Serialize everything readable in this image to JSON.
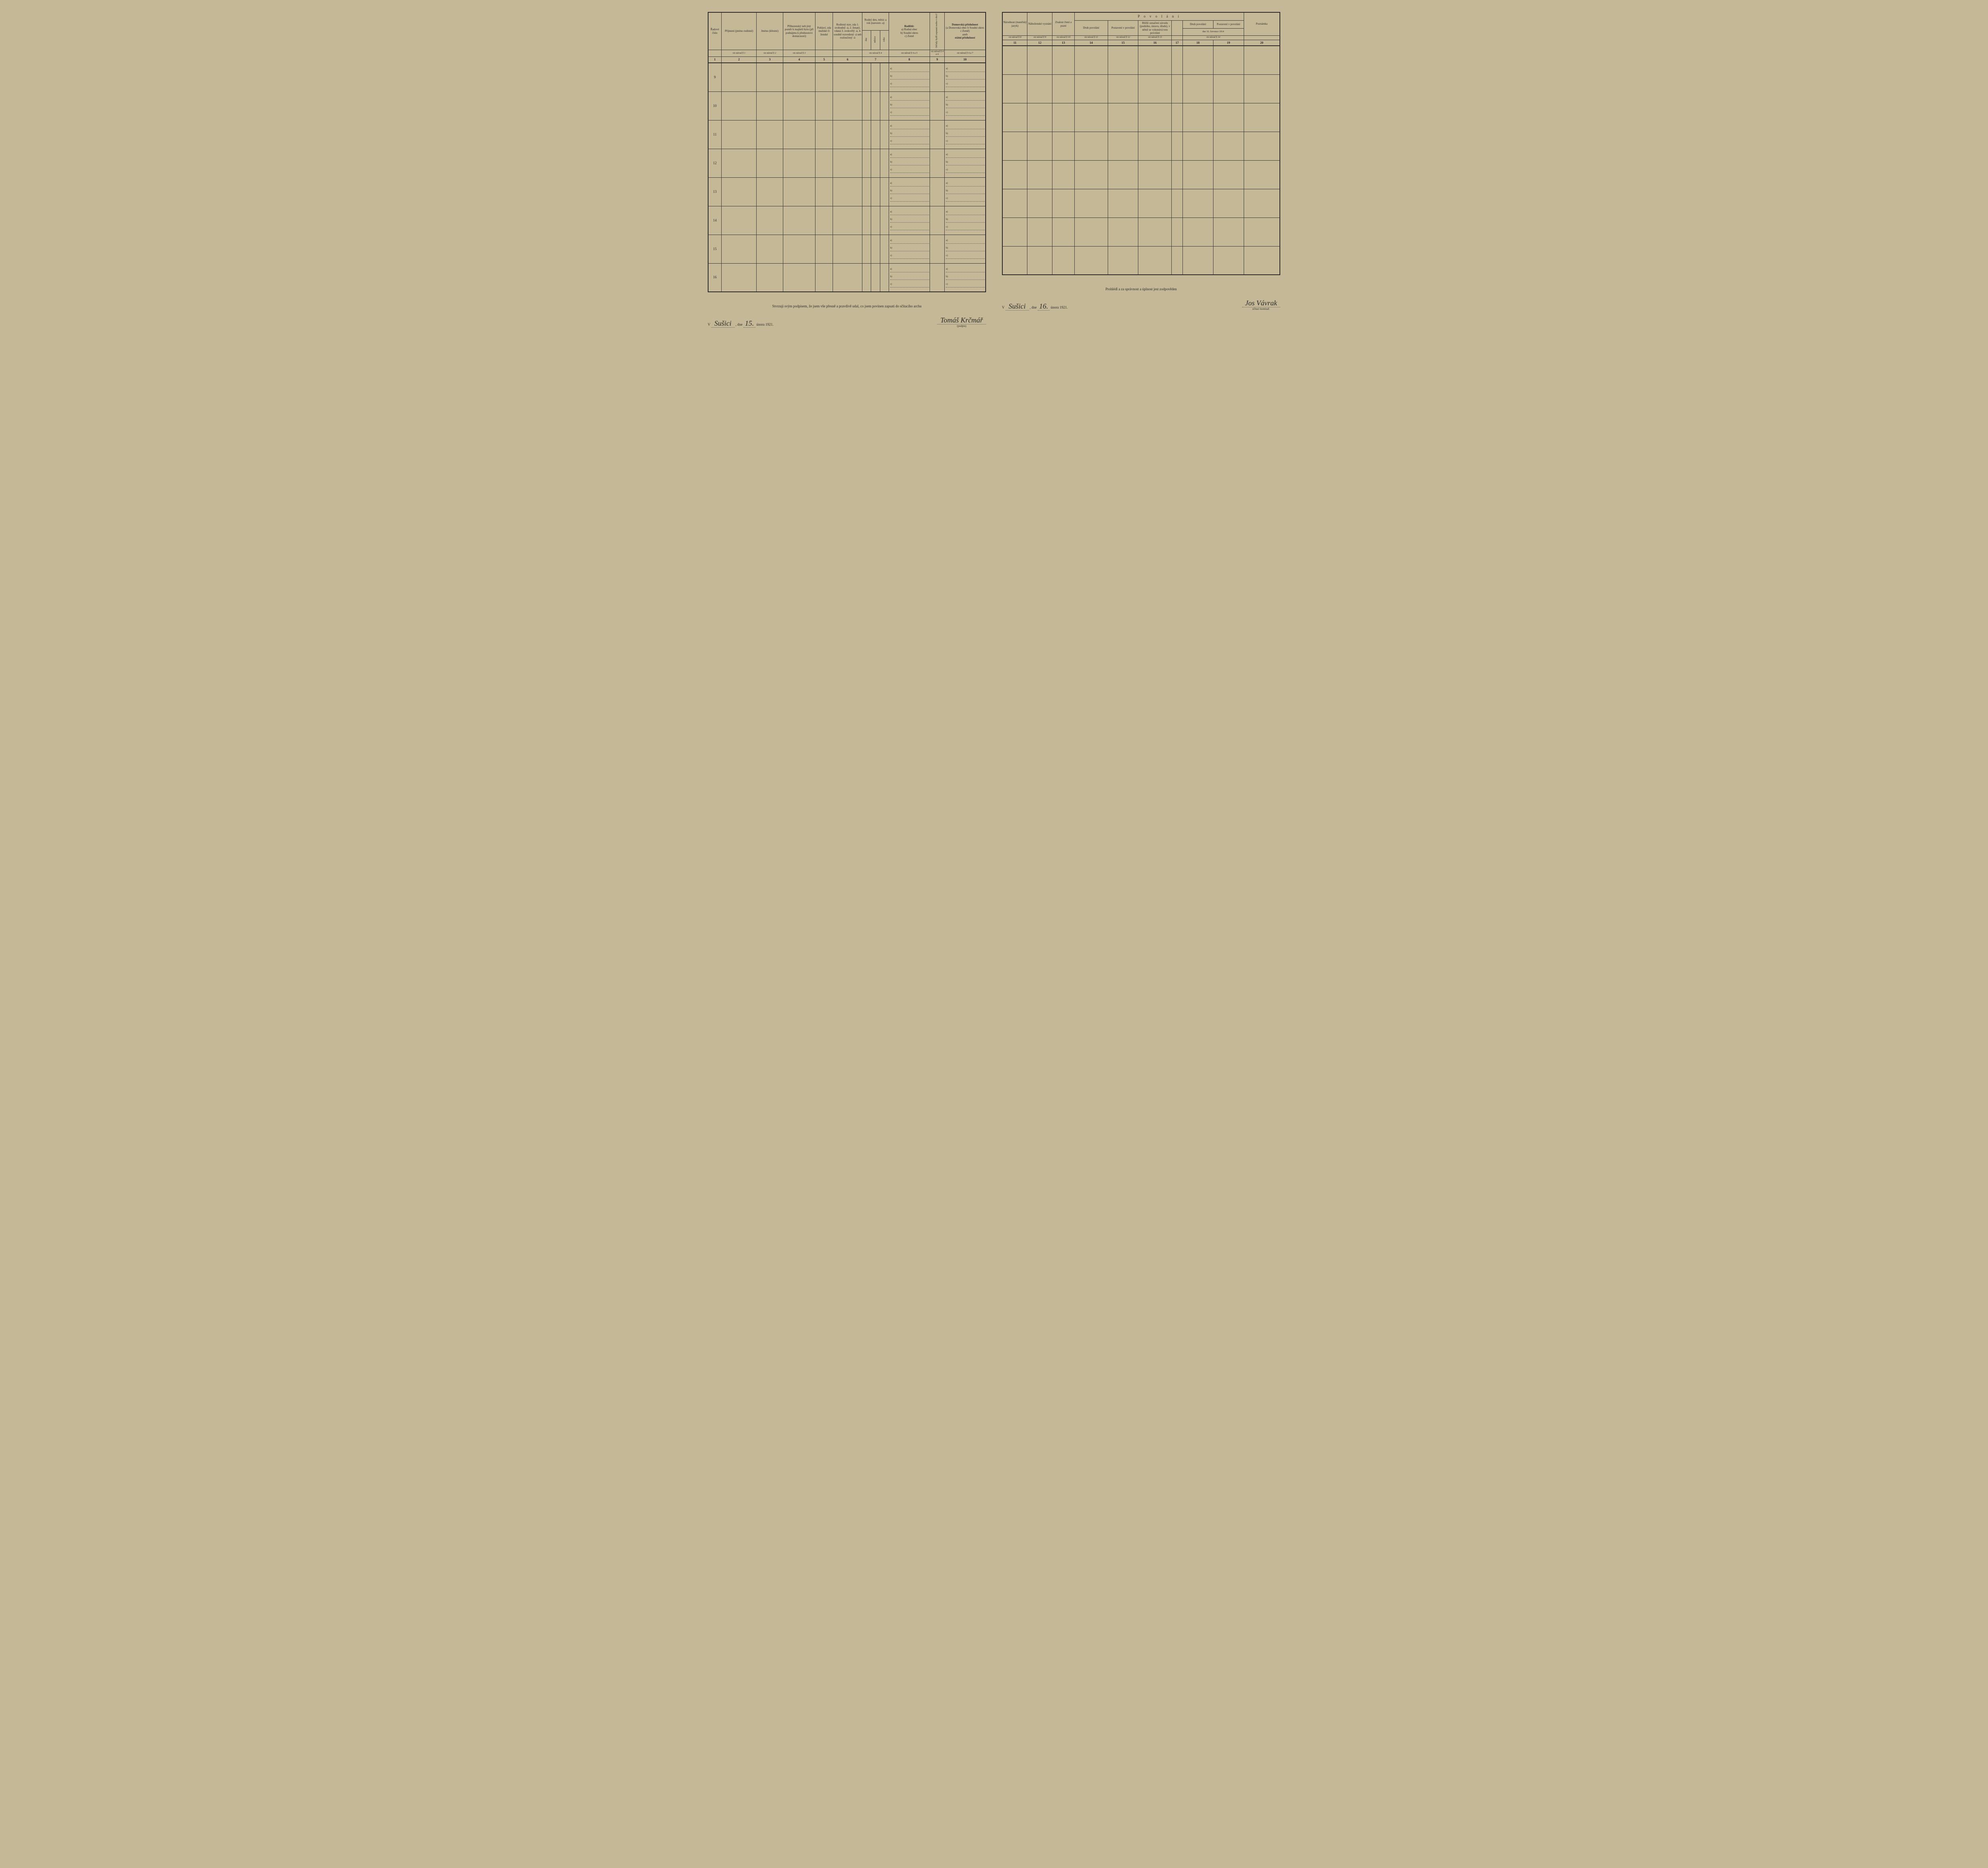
{
  "left": {
    "headers": {
      "c1": "Řadové číslo",
      "c2": "Příjmení (jméno rodinné)",
      "c3": "Jméno (křestní)",
      "c4": "Příbuzenský neb jiný poměr k majiteli bytu (při podnájmu k přednostovi domácnosti)",
      "c5": "Pohlaví, zda mužské či ženské",
      "c6": "Rodinný stav, zda 1. svobodný -á, 2. ženatý, vdaná 3. ovdovělý -á, 4. soudně rozvedený -á neb rozloučený -á",
      "c7": "Rodný den, měsíc a rok (narozen -a)",
      "c7a": "dne",
      "c7b": "měsíce",
      "c7c": "roku",
      "c8": "Rodiště:",
      "c8a": "a) Rodná obec",
      "c8b": "b) Soudní okres",
      "c8c": "c) Země",
      "c9": "Od kdy bydlí zapsaná osoba v obci?",
      "c10": "Domovská příslušnost",
      "c10a": "(a Domovská obec b Soudní okres c Země)",
      "c10b": "aneb",
      "c10c": "státní příslušnost"
    },
    "refs": {
      "r2": "viz návod § 1",
      "r3": "viz návod § 2",
      "r4": "viz návod § 3",
      "r7": "viz návod § 4",
      "r8": "viz návod § 4 a 5",
      "r9": "viz návod § 4 a 6",
      "r10": "viz návod § 4 a 7"
    },
    "nums": [
      "1",
      "2",
      "3",
      "4",
      "5",
      "6",
      "7",
      "8",
      "9",
      "10"
    ],
    "rows": [
      "9",
      "10",
      "11",
      "12",
      "13",
      "14",
      "15",
      "16"
    ],
    "abc": {
      "a": "a)",
      "b": "b)",
      "c": "c)"
    },
    "footer_text": "Stvrzuji svým podpisem, že jsem vše přesně a pravdivě udal, co jsem povinen zapsati do sčítacího archu",
    "place_prefix": "V",
    "place": "Sušici",
    "date_prefix": ", dne",
    "day": "15.",
    "month_year": "února 1921.",
    "signature": "Tomáš Krčmář",
    "sig_label": "(podpis)"
  },
  "right": {
    "spanning": "P o v o l á n í",
    "headers": {
      "c11": "Národnost (mateřský jazyk)",
      "c12": "Náboženské vyznání",
      "c13": "Znalost čtení a psaní",
      "c14": "Druh povolání",
      "c15": "Postavení v povolání",
      "c16": "Bližší označení závodu (podniku, ústavu, úřadu), v němž se vykonává toto povolání",
      "c17": "",
      "c18": "Druh povolání",
      "c19": "Postavení v povolání",
      "c20": "Poznámka",
      "sub_date": "dne 16. července 1914"
    },
    "refs": {
      "r11": "viz návod § 8",
      "r12": "viz návod § 9",
      "r13": "viz návod § 10",
      "r14": "viz návod § 11",
      "r15": "viz návod § 12",
      "r16": "viz návod § 13",
      "r1819": "viz návod § 14"
    },
    "nums": [
      "11",
      "12",
      "13",
      "14",
      "15",
      "16",
      "17",
      "18",
      "19",
      "20"
    ],
    "footer_text": "Prohlédl a za správnost a úplnost jest zodpověden",
    "place_prefix": "V",
    "place": "Sušici",
    "date_prefix": ", dne",
    "day": "16.",
    "month_year": "února 1921.",
    "signature": "Jos Vávrak",
    "sig_label": "sčítací komisař."
  },
  "colors": {
    "bg": "#c4b896",
    "border": "#3a3a3a",
    "text": "#2a2a2a"
  }
}
